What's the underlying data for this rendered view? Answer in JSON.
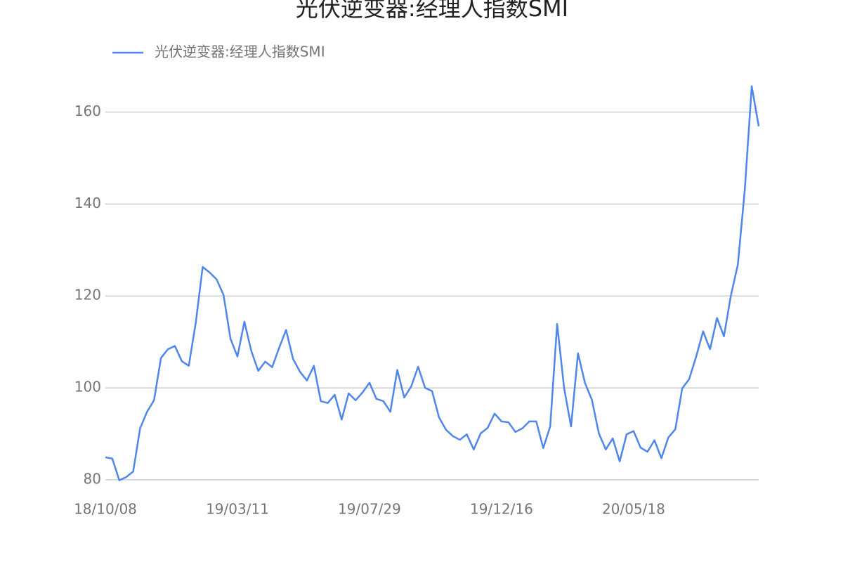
{
  "chart_data": {
    "type": "line",
    "title": "光伏逆变器:经理人指数SMI",
    "categories": [
      "18/10/08",
      null,
      null,
      null,
      null,
      null,
      null,
      null,
      null,
      null,
      null,
      null,
      null,
      null,
      null,
      null,
      null,
      null,
      null,
      "19/03/11",
      null,
      null,
      null,
      null,
      null,
      null,
      null,
      null,
      null,
      null,
      null,
      null,
      null,
      null,
      null,
      null,
      null,
      null,
      "19/07/29",
      null,
      null,
      null,
      null,
      null,
      null,
      null,
      null,
      null,
      null,
      null,
      null,
      null,
      null,
      null,
      null,
      null,
      null,
      "19/12/16",
      null,
      null,
      null,
      null,
      null,
      null,
      null,
      null,
      null,
      null,
      null,
      null,
      null,
      null,
      null,
      null,
      null,
      null,
      "20/05/18",
      null,
      null,
      null,
      null,
      null,
      null,
      null,
      null,
      null,
      null,
      null,
      null,
      null,
      null,
      null,
      null,
      null,
      null
    ],
    "series": [
      {
        "name": "光伏逆变器:经理人指数SMI",
        "color": "#4e86ec",
        "values": [
          84.9,
          84.6,
          79.9,
          80.6,
          81.8,
          91.2,
          94.8,
          97.3,
          106.5,
          108.4,
          109.1,
          105.8,
          104.8,
          114.1,
          126.3,
          125.1,
          123.6,
          120.2,
          110.7,
          106.8,
          114.4,
          108.0,
          103.7,
          105.7,
          104.5,
          108.7,
          112.6,
          106.3,
          103.5,
          101.6,
          104.8,
          97.1,
          96.7,
          98.5,
          93.1,
          98.8,
          97.3,
          99.0,
          101.1,
          97.6,
          97.1,
          94.8,
          103.9,
          97.9,
          100.3,
          104.6,
          100.0,
          99.3,
          93.6,
          90.9,
          89.5,
          88.7,
          89.9,
          86.6,
          90.1,
          91.3,
          94.4,
          92.7,
          92.5,
          90.4,
          91.2,
          92.7,
          92.7,
          86.9,
          91.6,
          113.9,
          100.0,
          91.6,
          107.5,
          101.1,
          97.4,
          90.1,
          86.6,
          89.0,
          84.0,
          89.9,
          90.6,
          87.0,
          86.1,
          88.6,
          84.7,
          89.2,
          91.0,
          99.9,
          101.9,
          106.8,
          112.3,
          108.4,
          115.2,
          111.2,
          120.1,
          126.8,
          143.1,
          165.6,
          156.9
        ]
      }
    ],
    "ylim": [
      80,
      170
    ],
    "yticks": [
      80,
      100,
      120,
      140,
      160
    ],
    "grid": true,
    "legend": "top-left"
  }
}
